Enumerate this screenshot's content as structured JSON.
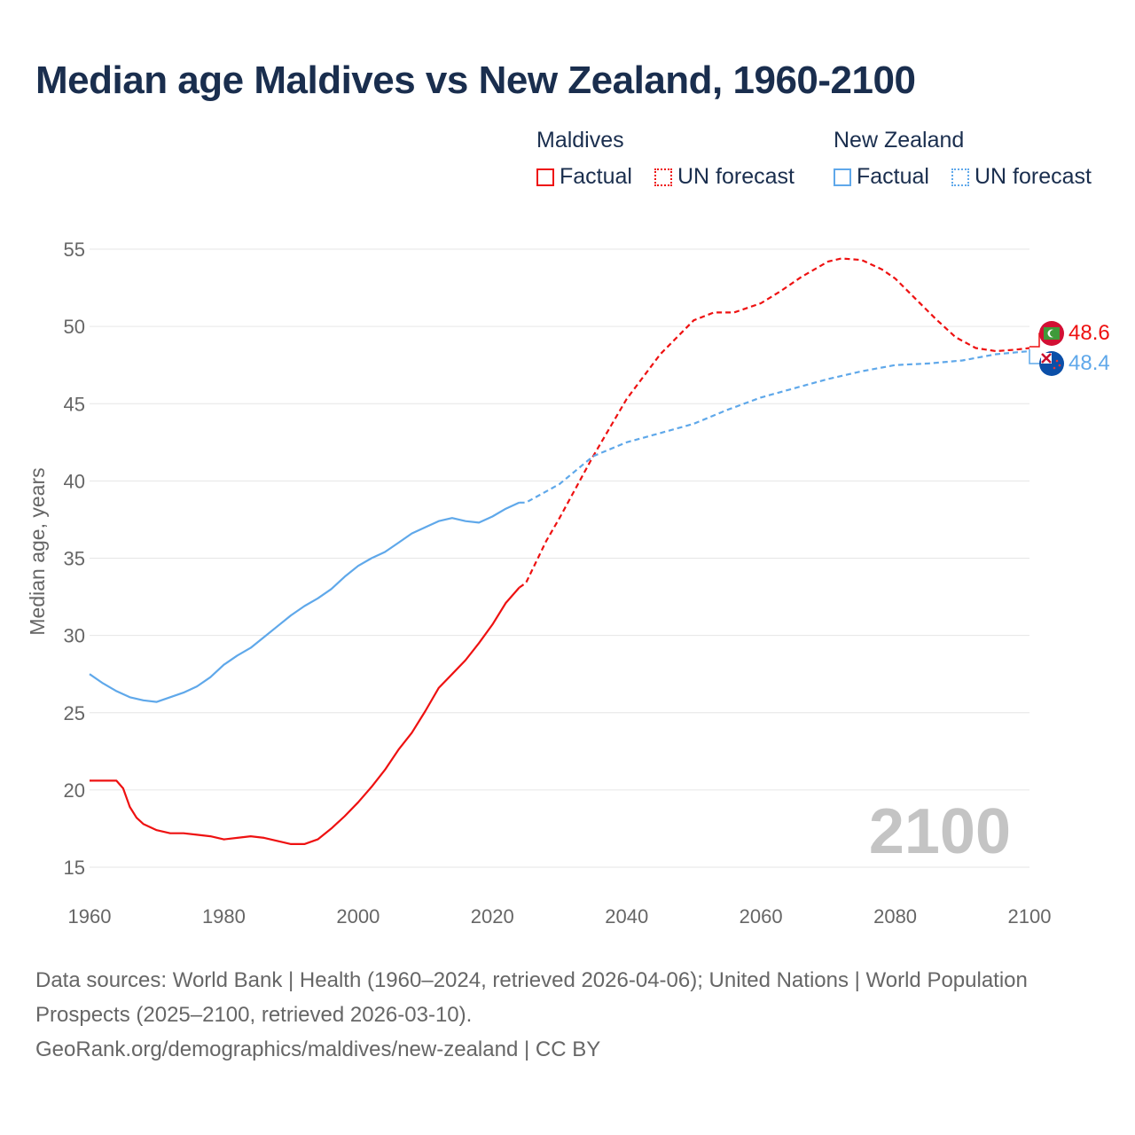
{
  "title": "Median age Maldives vs New Zealand, 1960-2100",
  "legend": {
    "groups": [
      {
        "name": "Maldives",
        "factual": "Factual",
        "forecast": "UN forecast",
        "color": "#ee1111"
      },
      {
        "name": "New Zealand",
        "factual": "Factual",
        "forecast": "UN forecast",
        "color": "#5fa8ea"
      }
    ]
  },
  "watermark_year": "2100",
  "source": {
    "line1": "Data sources: World Bank | Health (1960–2024, retrieved 2026-04-06); United Nations | World Population Prospects (2025–2100, retrieved 2026-03-10).",
    "line2": "GeoRank.org/demographics/maldives/new-zealand | CC BY"
  },
  "chart_data": {
    "type": "line",
    "title": "Median age Maldives vs New Zealand, 1960-2100",
    "xlabel": "",
    "ylabel": "Median age, years",
    "xlim": [
      1960,
      2100
    ],
    "ylim": [
      15,
      55
    ],
    "xticks": [
      1960,
      1980,
      2000,
      2020,
      2040,
      2060,
      2080,
      2100
    ],
    "yticks": [
      15,
      20,
      25,
      30,
      35,
      40,
      45,
      50,
      55
    ],
    "grid": "horizontal",
    "legend_position": "top-right",
    "end_labels": {
      "Maldives": "48.6",
      "New Zealand": "48.4"
    },
    "series": [
      {
        "name": "Maldives",
        "segment": "Factual",
        "color": "#ee1111",
        "dashed": false,
        "x": [
          1960,
          1964,
          1965,
          1966,
          1967,
          1968,
          1970,
          1972,
          1974,
          1976,
          1978,
          1980,
          1982,
          1984,
          1986,
          1988,
          1990,
          1992,
          1994,
          1996,
          1998,
          2000,
          2002,
          2004,
          2006,
          2008,
          2010,
          2012,
          2014,
          2016,
          2018,
          2020,
          2022,
          2024
        ],
        "y": [
          20.6,
          20.6,
          20.1,
          18.9,
          18.2,
          17.8,
          17.4,
          17.2,
          17.2,
          17.1,
          17.0,
          16.8,
          16.9,
          17.0,
          16.9,
          16.7,
          16.5,
          16.5,
          16.8,
          17.5,
          18.3,
          19.2,
          20.2,
          21.3,
          22.6,
          23.7,
          25.1,
          26.6,
          27.5,
          28.4,
          29.5,
          30.7,
          32.1,
          33.1
        ]
      },
      {
        "name": "Maldives",
        "segment": "UN forecast",
        "color": "#ee1111",
        "dashed": true,
        "x": [
          2024,
          2025,
          2028,
          2030,
          2035,
          2040,
          2045,
          2050,
          2053,
          2056,
          2058,
          2060,
          2063,
          2066,
          2070,
          2072,
          2075,
          2078,
          2080,
          2083,
          2086,
          2089,
          2092,
          2095,
          2098,
          2100
        ],
        "y": [
          33.1,
          33.4,
          36.1,
          37.6,
          41.6,
          45.3,
          48.2,
          50.4,
          50.9,
          50.9,
          51.2,
          51.5,
          52.3,
          53.2,
          54.2,
          54.4,
          54.3,
          53.7,
          53.1,
          51.8,
          50.5,
          49.3,
          48.6,
          48.4,
          48.5,
          48.6
        ]
      },
      {
        "name": "New Zealand",
        "segment": "Factual",
        "color": "#5fa8ea",
        "dashed": false,
        "x": [
          1960,
          1962,
          1964,
          1966,
          1968,
          1970,
          1972,
          1974,
          1976,
          1978,
          1980,
          1982,
          1984,
          1986,
          1988,
          1990,
          1992,
          1994,
          1996,
          1998,
          2000,
          2002,
          2004,
          2006,
          2008,
          2010,
          2012,
          2014,
          2016,
          2018,
          2020,
          2022,
          2024
        ],
        "y": [
          27.5,
          26.9,
          26.4,
          26.0,
          25.8,
          25.7,
          26.0,
          26.3,
          26.7,
          27.3,
          28.1,
          28.7,
          29.2,
          29.9,
          30.6,
          31.3,
          31.9,
          32.4,
          33.0,
          33.8,
          34.5,
          35.0,
          35.4,
          36.0,
          36.6,
          37.0,
          37.4,
          37.6,
          37.4,
          37.3,
          37.7,
          38.2,
          38.6
        ]
      },
      {
        "name": "New Zealand",
        "segment": "UN forecast",
        "color": "#5fa8ea",
        "dashed": true,
        "x": [
          2024,
          2025,
          2030,
          2035,
          2040,
          2045,
          2050,
          2055,
          2060,
          2065,
          2070,
          2075,
          2080,
          2085,
          2090,
          2095,
          2100
        ],
        "y": [
          38.6,
          38.6,
          39.8,
          41.6,
          42.5,
          43.1,
          43.7,
          44.6,
          45.4,
          46.0,
          46.6,
          47.1,
          47.5,
          47.6,
          47.8,
          48.2,
          48.4
        ]
      }
    ]
  }
}
